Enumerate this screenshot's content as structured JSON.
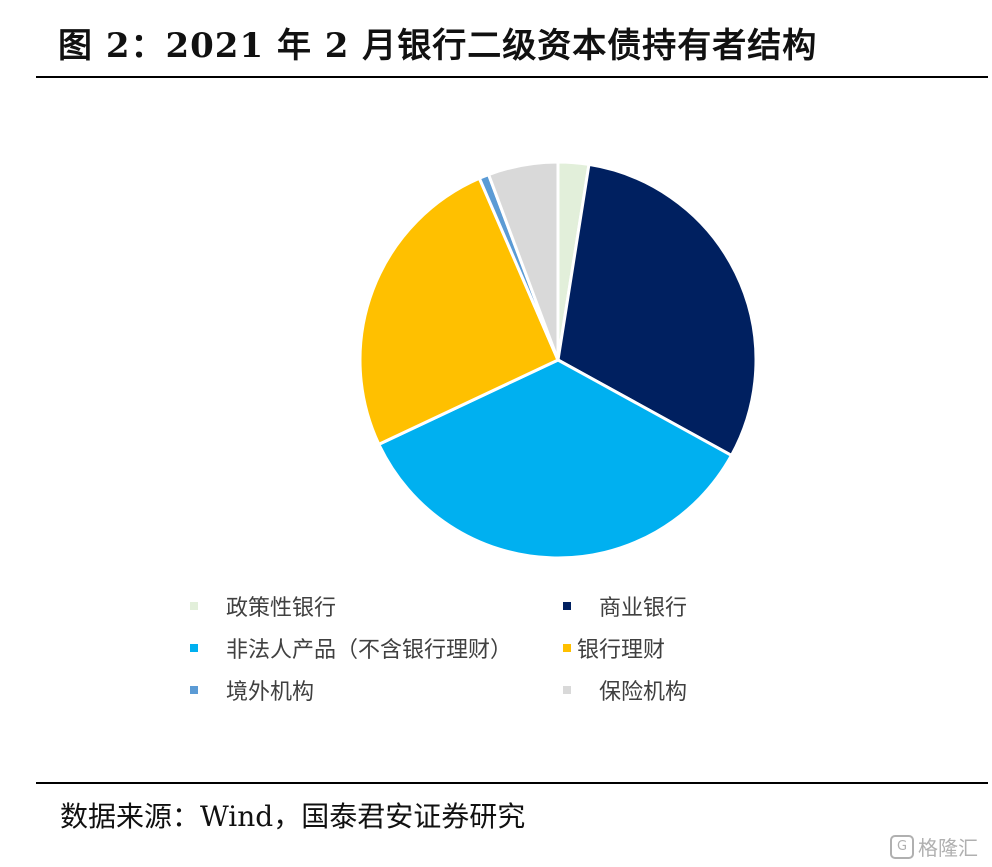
{
  "header": {
    "title": "图 2：2021 年 2 月银行二级资本债持有者结构"
  },
  "chart_data": {
    "type": "pie",
    "title": "",
    "slices": [
      {
        "label": "政策性银行",
        "value": 2.5,
        "color": "#E2EFDA"
      },
      {
        "label": "商业银行",
        "value": 30.5,
        "color": "#002060"
      },
      {
        "label": "非法人产品（不含银行理财）",
        "value": 35.0,
        "color": "#00B0F0"
      },
      {
        "label": "银行理财",
        "value": 25.5,
        "color": "#FFC000"
      },
      {
        "label": "境外机构",
        "value": 0.8,
        "color": "#5B9BD5"
      },
      {
        "label": "保险机构",
        "value": 5.7,
        "color": "#D9D9D9"
      }
    ],
    "legend_position": "bottom"
  },
  "legend": {
    "items": [
      {
        "label": "政策性银行",
        "color": "#E2EFDA"
      },
      {
        "label": "商业银行",
        "color": "#002060"
      },
      {
        "label": "非法人产品（不含银行理财）",
        "color": "#00B0F0"
      },
      {
        "label": "银行理财",
        "color": "#FFC000"
      },
      {
        "label": "境外机构",
        "color": "#5B9BD5"
      },
      {
        "label": "保险机构",
        "color": "#D9D9D9"
      }
    ]
  },
  "footer": {
    "source": "数据来源：Wind，国泰君安证券研究"
  },
  "watermark": {
    "text": "格隆汇",
    "icon": "g-logo-icon"
  }
}
